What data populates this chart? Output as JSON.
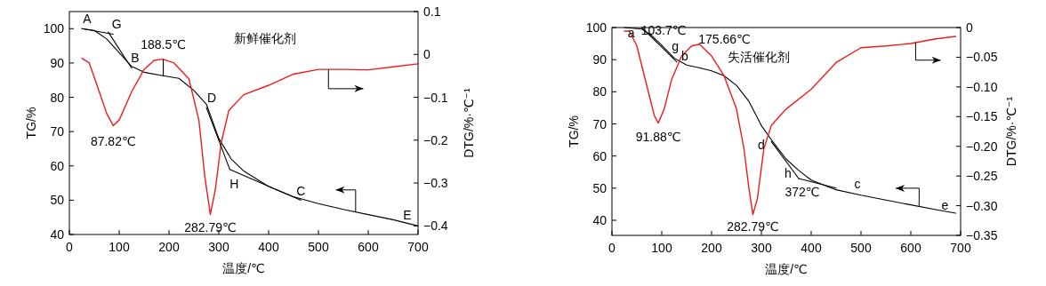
{
  "chart_data": [
    {
      "type": "line",
      "title": "新鲜催化剂",
      "xlabel": "温度/℃",
      "ylabel": "TG/%",
      "y2label": "DTG/%·℃⁻¹",
      "xlim": [
        0,
        700
      ],
      "xticks": [
        0,
        100,
        200,
        300,
        400,
        500,
        600,
        700
      ],
      "ylim": [
        40,
        105
      ],
      "yticks": [
        40,
        50,
        60,
        70,
        80,
        90,
        100
      ],
      "y2lim": [
        -0.42,
        0.1
      ],
      "y2ticks": [
        {
          "value": 0.1,
          "label": "0.1"
        },
        {
          "value": 0,
          "label": "0"
        },
        {
          "value": -0.1,
          "label": "−0.1"
        },
        {
          "value": -0.2,
          "label": "−0.2"
        },
        {
          "value": -0.3,
          "label": "−0.3"
        },
        {
          "value": -0.4,
          "label": "−0.4"
        }
      ],
      "series": [
        {
          "color": "#000000",
          "x": [
            25,
            50,
            75,
            100,
            125,
            150,
            188,
            220,
            250,
            275,
            300,
            325,
            350,
            400,
            450,
            500,
            550,
            600,
            650,
            700
          ],
          "values": [
            100,
            99.5,
            97,
            93,
            89,
            87.3,
            86.3,
            85.5,
            82,
            78,
            68,
            62,
            58.5,
            54,
            51,
            49,
            47.3,
            45.8,
            44.3,
            42.5
          ]
        },
        {
          "color": "#ee1c1c",
          "axis": "y2",
          "x": [
            25,
            40,
            60,
            75,
            88,
            100,
            125,
            150,
            170,
            188,
            210,
            240,
            260,
            272,
            283,
            293,
            305,
            320,
            350,
            400,
            450,
            500,
            550,
            600,
            650,
            700
          ],
          "values": [
            -0.009,
            -0.02,
            -0.087,
            -0.138,
            -0.166,
            -0.153,
            -0.087,
            -0.035,
            -0.014,
            -0.011,
            -0.02,
            -0.057,
            -0.153,
            -0.286,
            -0.373,
            -0.315,
            -0.205,
            -0.131,
            -0.094,
            -0.072,
            -0.046,
            -0.035,
            -0.035,
            -0.036,
            -0.029,
            -0.022
          ]
        },
        {
          "color": "#000000",
          "x": [
            25,
            88
          ],
          "values": [
            100,
            98.4
          ]
        },
        {
          "color": "#000000",
          "x": [
            78,
            125
          ],
          "values": [
            99,
            88.5
          ]
        },
        {
          "color": "#000000",
          "x": [
            188.5,
            188.5
          ],
          "values": [
            90.9,
            86.3
          ]
        },
        {
          "color": "#000000",
          "x": [
            275,
            322
          ],
          "values": [
            77,
            59
          ]
        },
        {
          "color": "#000000",
          "x": [
            322,
            465
          ],
          "values": [
            59,
            50
          ]
        }
      ],
      "annotations": [
        {
          "text": "A",
          "x": 25,
          "y": 100
        },
        {
          "text": "G",
          "x": 88,
          "y": 98.4
        },
        {
          "text": "B",
          "x": 125,
          "y": 88.5
        },
        {
          "text": "188.5℃",
          "x": 188.5,
          "y": 90.9
        },
        {
          "text": "87.82℃",
          "x": 88,
          "y": 71.7
        },
        {
          "text": "D",
          "x": 275,
          "y": 78
        },
        {
          "text": "H",
          "x": 322,
          "y": 59
        },
        {
          "text": "282.79℃",
          "x": 283,
          "y": 45.9
        },
        {
          "text": "C",
          "x": 465,
          "y": 50
        },
        {
          "text": "E",
          "x": 700,
          "y": 42.5
        }
      ]
    },
    {
      "type": "line",
      "title": "失活催化剂",
      "xlabel": "温度/℃",
      "ylabel": "TG/%",
      "y2label": "DTG/%·℃⁻¹",
      "xlim": [
        0,
        700
      ],
      "xticks": [
        0,
        100,
        200,
        300,
        400,
        500,
        600,
        700
      ],
      "ylim": [
        35.3,
        100
      ],
      "yticks": [
        40,
        50,
        60,
        70,
        80,
        90,
        100
      ],
      "y2lim": [
        -0.35,
        0
      ],
      "y2ticks": [
        {
          "value": 0,
          "label": "0"
        },
        {
          "value": -0.05,
          "label": "−0.05"
        },
        {
          "value": -0.1,
          "label": "−0.10"
        },
        {
          "value": -0.15,
          "label": "−0.15"
        },
        {
          "value": -0.2,
          "label": "−0.20"
        },
        {
          "value": -0.25,
          "label": "−0.25"
        },
        {
          "value": -0.3,
          "label": "−0.30"
        },
        {
          "value": -0.35,
          "label": "−0.35"
        }
      ],
      "series": [
        {
          "color": "#000000",
          "x": [
            25,
            60,
            80,
            100,
            125,
            150,
            175,
            200,
            225,
            250,
            275,
            300,
            325,
            350,
            375,
            400,
            450,
            500,
            550,
            600,
            650,
            690
          ],
          "values": [
            100,
            99.5,
            97.5,
            94.5,
            90.5,
            88.3,
            87.5,
            86.5,
            85,
            82,
            77,
            69.5,
            64,
            59,
            55.5,
            52.5,
            49.5,
            47.8,
            46.3,
            44.8,
            43.3,
            42.2
          ]
        },
        {
          "color": "#ee1c1c",
          "axis": "y2",
          "x": [
            25,
            35,
            50,
            70,
            85,
            93,
            105,
            120,
            140,
            160,
            176,
            200,
            225,
            250,
            265,
            275,
            283,
            292,
            305,
            320,
            350,
            400,
            450,
            500,
            550,
            600,
            650,
            690
          ],
          "values": [
            -0.006,
            -0.006,
            -0.031,
            -0.098,
            -0.148,
            -0.161,
            -0.137,
            -0.087,
            -0.048,
            -0.031,
            -0.028,
            -0.048,
            -0.081,
            -0.137,
            -0.204,
            -0.271,
            -0.315,
            -0.288,
            -0.204,
            -0.165,
            -0.137,
            -0.104,
            -0.059,
            -0.034,
            -0.031,
            -0.027,
            -0.019,
            -0.015
          ]
        },
        {
          "color": "#000000",
          "x": [
            60,
            130
          ],
          "values": [
            100,
            89.3
          ]
        },
        {
          "color": "#000000",
          "x": [
            320,
            375
          ],
          "values": [
            64.5,
            53
          ]
        },
        {
          "color": "#000000",
          "x": [
            375,
            450
          ],
          "values": [
            53,
            50
          ]
        }
      ],
      "annotations": [
        {
          "text": "a",
          "x": 60,
          "y": 99.5
        },
        {
          "text": "103.7℃",
          "x": 103.7,
          "y": 94.5
        },
        {
          "text": "g",
          "x": 120,
          "y": 91.5
        },
        {
          "text": "b",
          "x": 130,
          "y": 89.3
        },
        {
          "text": "175.66℃",
          "x": 176,
          "y": 94.8
        },
        {
          "text": "91.88℃",
          "x": 93,
          "y": 70.2
        },
        {
          "text": "d",
          "x": 325,
          "y": 64
        },
        {
          "text": "h",
          "x": 375,
          "y": 53
        },
        {
          "text": "372℃",
          "x": 375,
          "y": 53
        },
        {
          "text": "282.79℃",
          "x": 283,
          "y": 41.8
        },
        {
          "text": "c",
          "x": 500,
          "y": 47.8
        },
        {
          "text": "e",
          "x": 690,
          "y": 42.2
        }
      ]
    }
  ]
}
